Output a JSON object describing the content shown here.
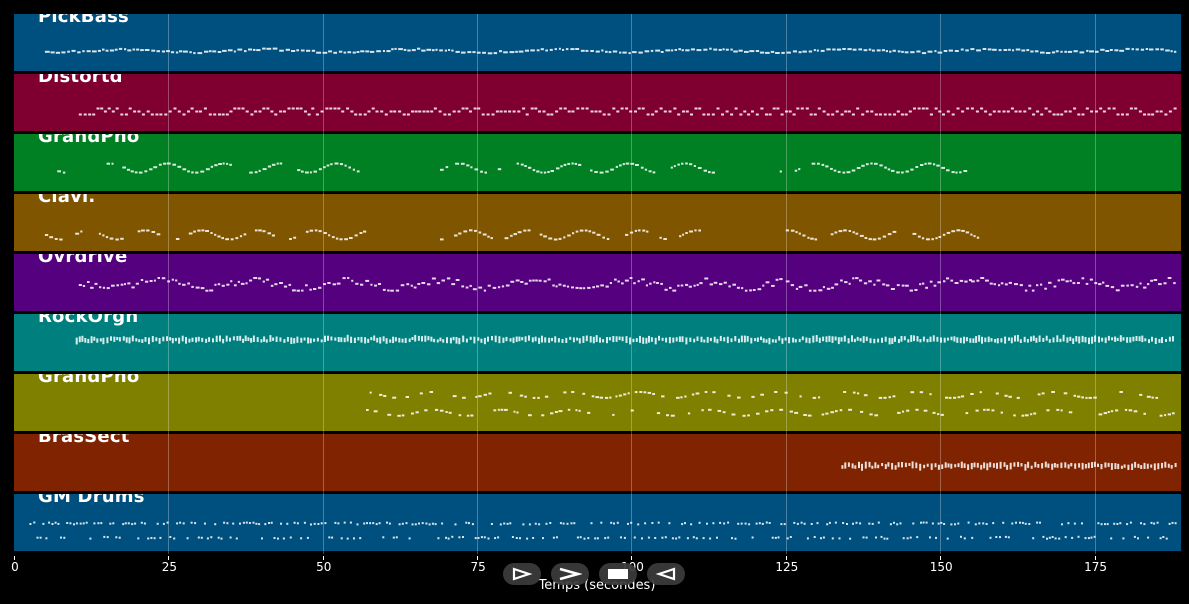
{
  "timeline": {
    "x_min": 0,
    "x_max": 189,
    "ticks": [
      0,
      25,
      50,
      75,
      100,
      125,
      150,
      175
    ],
    "tick_labels": [
      "0",
      "25",
      "50",
      "75",
      "100",
      "125",
      "150",
      "175"
    ],
    "xlabel": "Temps (secondes)"
  },
  "tracks": [
    {
      "name": "PickBass",
      "color": "#00507f",
      "segments": [
        [
          5,
          188
        ]
      ],
      "style": "mono",
      "band": [
        0.56,
        0.7
      ]
    },
    {
      "name": "Distortd",
      "color": "#7f0030",
      "segments": [
        [
          10.5,
          188
        ]
      ],
      "style": "block",
      "band": [
        0.55,
        0.73
      ]
    },
    {
      "name": "GrandPno",
      "color": "#007f23",
      "segments": [
        [
          7,
          8
        ],
        [
          15,
          56
        ],
        [
          69,
          113
        ],
        [
          124,
          154
        ]
      ],
      "style": "wave",
      "band": [
        0.48,
        0.68
      ]
    },
    {
      "name": "Clavi.",
      "color": "#7f5500",
      "segments": [
        [
          5,
          57
        ],
        [
          69,
          111
        ],
        [
          125,
          156
        ]
      ],
      "style": "wave",
      "band": [
        0.6,
        0.8
      ]
    },
    {
      "name": "Ovrdrive",
      "color": "#55007f",
      "segments": [
        [
          10.5,
          111
        ],
        [
          111,
          124
        ],
        [
          125,
          155
        ],
        [
          155,
          188
        ]
      ],
      "style": "mixed",
      "band": [
        0.38,
        0.65
      ]
    },
    {
      "name": "RockOrgn",
      "color": "#007f7f",
      "segments": [
        [
          10,
          188
        ]
      ],
      "style": "dense",
      "band": [
        0.35,
        0.55
      ]
    },
    {
      "name": "GrandPno",
      "color": "#7f7f00",
      "segments": [
        [
          57,
          188
        ]
      ],
      "style": "piano",
      "band": [
        0.2,
        0.7
      ]
    },
    {
      "name": "BrasSect",
      "color": "#7f2300",
      "segments": [
        [
          134,
          188
        ]
      ],
      "style": "dense",
      "band": [
        0.5,
        0.62
      ]
    },
    {
      "name": "GM Drums",
      "color": "#00507f",
      "segments": [
        [
          2.5,
          188
        ]
      ],
      "style": "drums",
      "band": [
        0.5,
        0.75
      ]
    }
  ],
  "controls": [
    {
      "name": "play",
      "icon": "play-icon"
    },
    {
      "name": "fast-forward",
      "icon": "chevron-right-icon"
    },
    {
      "name": "stop",
      "icon": "stop-icon"
    },
    {
      "name": "rewind",
      "icon": "rewind-icon"
    }
  ]
}
